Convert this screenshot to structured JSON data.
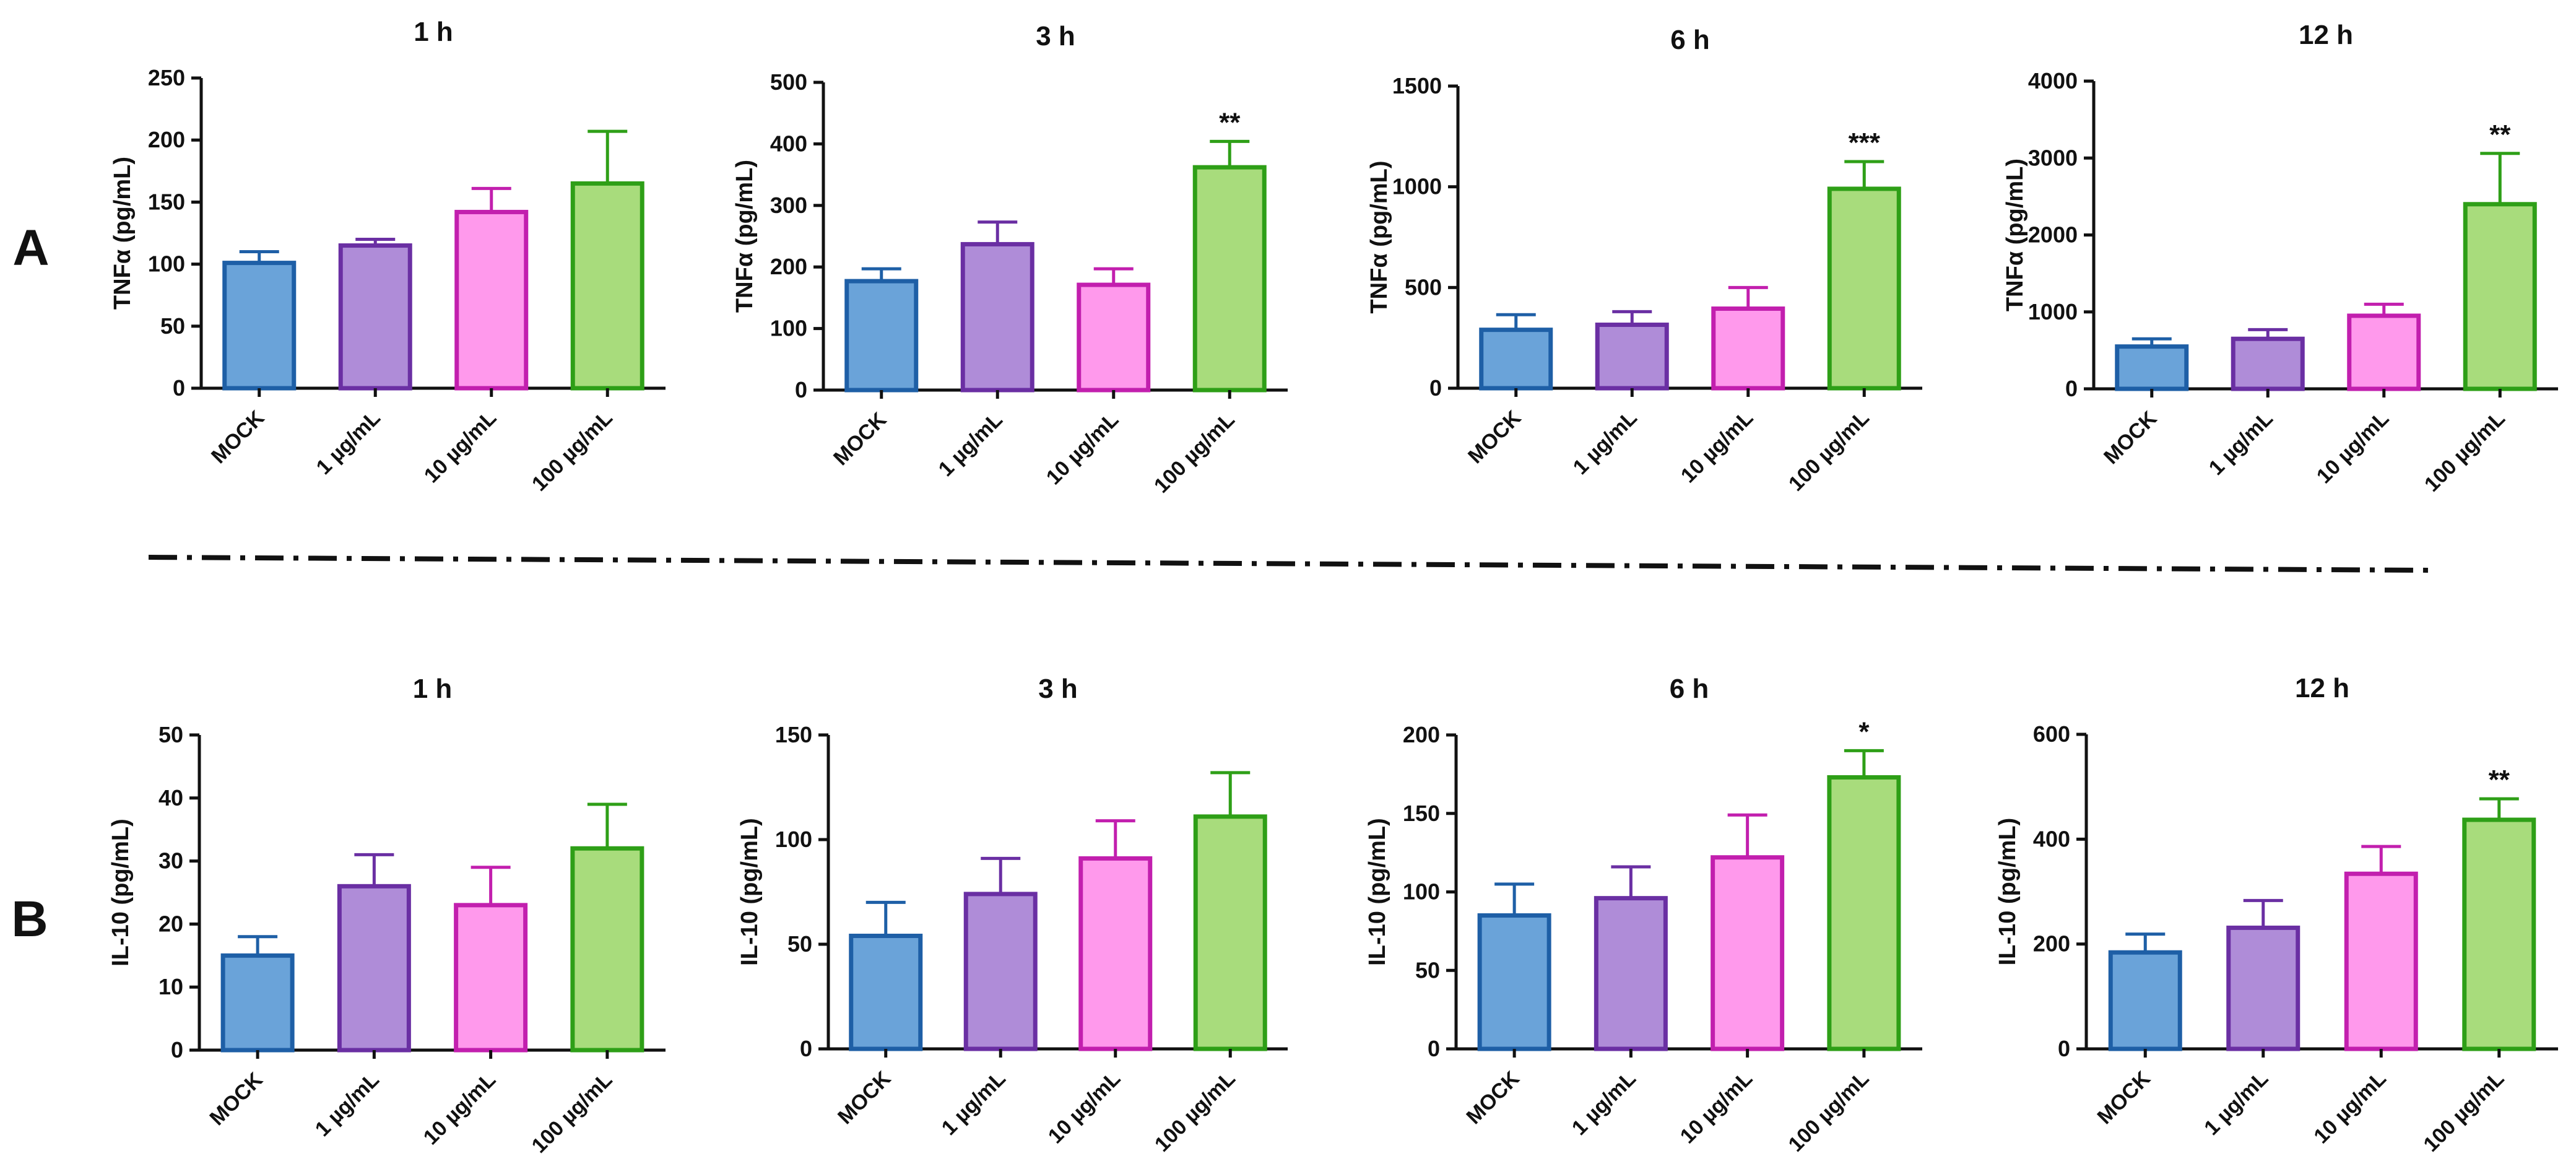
{
  "panel_labels": {
    "A": "A",
    "B": "B"
  },
  "colors": {
    "fills": [
      "#6aa3d9",
      "#af8cd8",
      "#ff99ec",
      "#a8dc7c"
    ],
    "strokes": [
      "#1e5fa6",
      "#6a2fa3",
      "#c21fae",
      "#2e9f17"
    ]
  },
  "chart_data": [
    {
      "id": "A-1h",
      "type": "bar",
      "title": "1 h",
      "ylabel": "TNFα (pg/mL)",
      "categories": [
        "MOCK",
        "1 µg/mL",
        "10 µg/mL",
        "100 µg/mL"
      ],
      "values": [
        101,
        115,
        142,
        165
      ],
      "errors": [
        9,
        5,
        19,
        42
      ],
      "significance": [
        "",
        "",
        "",
        ""
      ],
      "ylim": [
        0,
        250
      ],
      "yticks": [
        0,
        50,
        100,
        150,
        200,
        250
      ]
    },
    {
      "id": "A-3h",
      "type": "bar",
      "title": "3 h",
      "ylabel": "TNFα (pg/mL)",
      "categories": [
        "MOCK",
        "1 µg/mL",
        "10 µg/mL",
        "100 µg/mL"
      ],
      "values": [
        177,
        237,
        171,
        362
      ],
      "errors": [
        20,
        36,
        26,
        42
      ],
      "significance": [
        "",
        "",
        "",
        "**"
      ],
      "ylim": [
        0,
        500
      ],
      "yticks": [
        0,
        100,
        200,
        300,
        400,
        500
      ]
    },
    {
      "id": "A-6h",
      "type": "bar",
      "title": "6 h",
      "ylabel": "TNFα (pg/mL)",
      "categories": [
        "MOCK",
        "1 µg/mL",
        "10 µg/mL",
        "100 µg/mL"
      ],
      "values": [
        290,
        315,
        395,
        990
      ],
      "errors": [
        75,
        65,
        105,
        135
      ],
      "significance": [
        "",
        "",
        "",
        "***"
      ],
      "ylim": [
        0,
        1500
      ],
      "yticks": [
        0,
        500,
        1000,
        1500
      ]
    },
    {
      "id": "A-12h",
      "type": "bar",
      "title": "12 h",
      "ylabel": "TNFα (pg/mL)",
      "categories": [
        "MOCK",
        "1 µg/mL",
        "10 µg/mL",
        "100 µg/mL"
      ],
      "values": [
        550,
        650,
        950,
        2400
      ],
      "errors": [
        100,
        120,
        150,
        660
      ],
      "significance": [
        "",
        "",
        "",
        "**"
      ],
      "ylim": [
        0,
        4000
      ],
      "yticks": [
        0,
        1000,
        2000,
        3000,
        4000
      ]
    },
    {
      "id": "B-1h",
      "type": "bar",
      "title": "1 h",
      "ylabel": "IL-10 (pg/mL)",
      "categories": [
        "MOCK",
        "1 µg/mL",
        "10 µg/mL",
        "100 µg/mL"
      ],
      "values": [
        15,
        26,
        23,
        32
      ],
      "errors": [
        3,
        5,
        6,
        7
      ],
      "significance": [
        "",
        "",
        "",
        ""
      ],
      "ylim": [
        0,
        50
      ],
      "yticks": [
        0,
        10,
        20,
        30,
        40,
        50
      ]
    },
    {
      "id": "B-3h",
      "type": "bar",
      "title": "3 h",
      "ylabel": "IL-10 (pg/mL)",
      "categories": [
        "MOCK",
        "1 µg/mL",
        "10 µg/mL",
        "100 µg/mL"
      ],
      "values": [
        54,
        74,
        91,
        111
      ],
      "errors": [
        16,
        17,
        18,
        21
      ],
      "significance": [
        "",
        "",
        "",
        ""
      ],
      "ylim": [
        0,
        150
      ],
      "yticks": [
        0,
        50,
        100,
        150
      ]
    },
    {
      "id": "B-6h",
      "type": "bar",
      "title": "6 h",
      "ylabel": "IL-10 (pg/mL)",
      "categories": [
        "MOCK",
        "1 µg/mL",
        "10 µg/mL",
        "100 µg/mL"
      ],
      "values": [
        85,
        96,
        122,
        173
      ],
      "errors": [
        20,
        20,
        27,
        17
      ],
      "significance": [
        "",
        "",
        "",
        "*"
      ],
      "ylim": [
        0,
        200
      ],
      "yticks": [
        0,
        50,
        100,
        150,
        200
      ]
    },
    {
      "id": "B-12h",
      "type": "bar",
      "title": "12 h",
      "ylabel": "IL-10 (pg/mL)",
      "categories": [
        "MOCK",
        "1 µg/mL",
        "10 µg/mL",
        "100 µg/mL"
      ],
      "values": [
        184,
        231,
        334,
        437
      ],
      "errors": [
        35,
        52,
        52,
        40
      ],
      "significance": [
        "",
        "",
        "",
        "**"
      ],
      "ylim": [
        0,
        600
      ],
      "yticks": [
        0,
        200,
        400,
        600
      ]
    }
  ]
}
